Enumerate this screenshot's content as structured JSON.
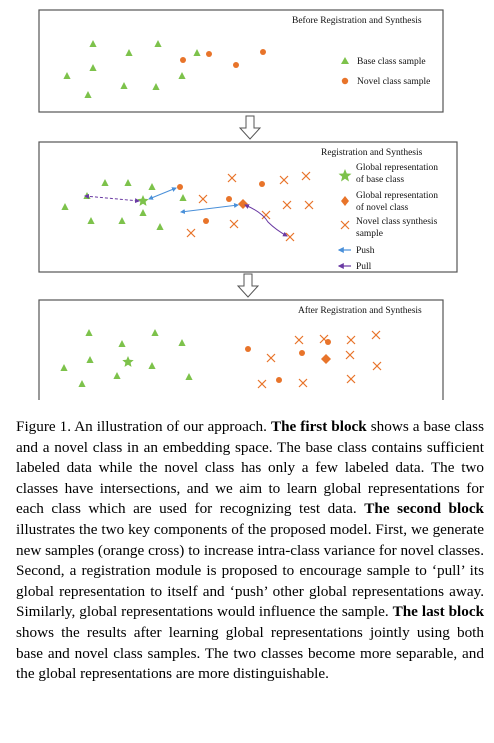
{
  "colors": {
    "base": "#7dc24b",
    "novel": "#e8742a",
    "push": "#4a90d9",
    "pull": "#6a3aa3",
    "box": "#555555"
  },
  "figure": {
    "block1": {
      "title": "Before Registration and Synthesis",
      "legend": {
        "base": "Base class sample",
        "novel": "Novel class sample"
      }
    },
    "block2": {
      "title": "Registration and Synthesis",
      "legend": {
        "global_base_l1": "Global representation",
        "global_base_l2": "of base class",
        "global_novel_l1": "Global representation",
        "global_novel_l2": "of novel class",
        "synth_l1": "Novel class synthesis",
        "synth_l2": "sample",
        "push": "Push",
        "pull": "Pull"
      }
    },
    "block3": {
      "title": "After Registration and Synthesis"
    }
  },
  "caption": {
    "label": "Figure 1. An illustration of our approach.",
    "b1": "The first block",
    "t1": "shows a base class and a novel class in an embedding space. The base class contains sufficient labeled data while the novel class has only a few labeled data. The two classes have intersections, and we aim to learn global representations for each class which are used for recognizing test data.",
    "b2": "The second block",
    "t2": "illustrates the two key components of the proposed model. First, we generate new samples (orange cross) to increase intra-class variance for novel classes. Second, a registration module is proposed to encourage sample to ‘pull’ its global representation to itself and ‘push’ other global representations away. Similarly, global representations would influence the sample.",
    "b3": "The last block",
    "t3": "shows the results after learning global representations jointly using both base and novel class samples. The two classes become more separable, and the global representations are more distinguishable."
  }
}
